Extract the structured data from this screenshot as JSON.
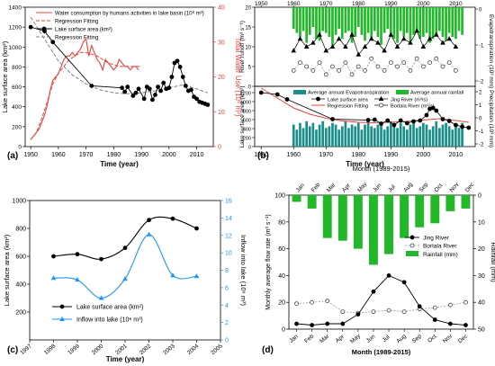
{
  "figure": {
    "background": "#ffffff"
  },
  "chart_data": [
    {
      "id": "a",
      "type": "line",
      "panel_label": "(a)",
      "xlabel": "Time (year)",
      "ylabel_left": "Lake surface area (km²)",
      "ylabel_right": "Total Water Use (10⁸ m³)",
      "xlim": [
        1948,
        2016
      ],
      "ylim_left": [
        0,
        1400
      ],
      "ylim_right": [
        0,
        40
      ],
      "xticks": [
        1950,
        1960,
        1970,
        1980,
        1990,
        2000,
        2010
      ],
      "yticks_left": [
        0,
        200,
        400,
        600,
        800,
        1000,
        1200,
        1400
      ],
      "yticks_right": [
        0,
        10,
        20,
        30,
        40
      ],
      "legend": [
        "Water consumption by humans activities in lake basin (10⁸ m³)",
        "Regression Fitting",
        "Lake surface area (km²)",
        "Regression Fitting"
      ],
      "colors": {
        "water": "#e8413c",
        "area": "#000000",
        "fit_area": "#808080",
        "right_axis": "#e8413c"
      },
      "series": [
        {
          "name": "Water consumption by humans activities in lake basin (10⁸ m³)",
          "axis": "right",
          "x": [
            1950,
            1951,
            1952,
            1953,
            1954,
            1955,
            1956,
            1957,
            1958,
            1959,
            1960,
            1961,
            1962,
            1963,
            1964,
            1965,
            1966,
            1967,
            1968,
            1969,
            1970,
            1971,
            1972,
            1973,
            1974,
            1975,
            1976,
            1977,
            1978,
            1979,
            1980,
            1981,
            1982,
            1983,
            1984,
            1985,
            1986,
            1987,
            1988,
            1989
          ],
          "y": [
            2,
            3,
            4,
            5,
            7,
            9,
            12,
            16,
            19,
            20,
            21,
            23,
            25,
            26,
            26,
            27,
            26,
            27,
            28,
            30,
            31,
            26,
            29,
            27,
            25,
            24,
            22,
            25,
            24,
            23,
            22,
            23,
            25,
            24,
            23,
            23,
            22,
            23,
            23,
            22
          ]
        },
        {
          "name": "Regression Fitting",
          "axis": "right",
          "x": [
            1950,
            1952,
            1954,
            1956,
            1958,
            1960,
            1962,
            1964,
            1966,
            1968,
            1970,
            1972,
            1974,
            1976,
            1978,
            1980,
            1982,
            1984,
            1986,
            1988,
            1990
          ],
          "y": [
            2,
            4,
            8,
            13,
            18,
            21,
            23,
            25,
            26,
            27,
            27,
            26.5,
            26,
            25,
            24,
            23.5,
            23,
            23,
            23,
            23,
            23
          ]
        },
        {
          "name": "Lake surface area (km²)",
          "axis": "left",
          "x": [
            1950,
            1955,
            1958,
            1972,
            1983,
            1984,
            1985,
            1987,
            1988,
            1989,
            1991,
            1992,
            1993,
            1994,
            1995,
            1996,
            1997,
            1998,
            1999,
            2000,
            2001,
            2002,
            2003,
            2004,
            2005,
            2006,
            2007,
            2008,
            2009,
            2010,
            2011,
            2012,
            2013,
            2014
          ],
          "y": [
            1200,
            1160,
            1050,
            610,
            590,
            550,
            600,
            510,
            540,
            580,
            480,
            600,
            580,
            470,
            520,
            600,
            560,
            640,
            580,
            590,
            700,
            840,
            860,
            800,
            700,
            610,
            560,
            570,
            500,
            480,
            450,
            440,
            430,
            420
          ]
        },
        {
          "name": "Regression Fitting",
          "axis": "left",
          "x": [
            1950,
            1955,
            1960,
            1965,
            1970,
            1975,
            1980,
            1985,
            1990,
            1995,
            2000,
            2005,
            2010,
            2014
          ],
          "y": [
            1300,
            1080,
            860,
            720,
            630,
            570,
            540,
            530,
            540,
            560,
            590,
            620,
            580,
            540
          ]
        }
      ]
    },
    {
      "id": "b",
      "type": "line",
      "panel_label": "(b)",
      "xlim": [
        1948,
        2016
      ],
      "xticks": [
        1950,
        1960,
        1970,
        1980,
        1990,
        2000,
        2010
      ],
      "xticks_top": [
        1950,
        1960,
        1970,
        1980,
        1990,
        2000,
        2010
      ],
      "xlabel": "Time (year)",
      "ylabel_runoff": "River runoff (m³ s⁻¹)",
      "ylabel_area": "Lake surface area (km²)",
      "ylabel_right": "Evapotranspiration (10³ mm) Precipitation (10³ mm)",
      "yticks_runoff": [
        0,
        5,
        10,
        15,
        20
      ],
      "yticks_area": [
        0,
        200,
        400,
        600,
        800,
        1000,
        1200
      ],
      "yticks_right_upper": [
        0,
        -1,
        -2
      ],
      "yticks_right_lower": [
        2,
        1,
        0,
        -1,
        -2
      ],
      "legend_upper": [
        "Average annual Evapotranspiration",
        "Average annual rainfall"
      ],
      "legend_lower": [
        "Lake surface area",
        "Jing River (m³/s)",
        "Regression Fitting",
        "Bortala River (m³/s)"
      ],
      "colors": {
        "rainfall": "#22b82a",
        "evap": "#1a8f8a",
        "fit": "#e8413c"
      },
      "rainfall_bars": {
        "x": [
          1960,
          1961,
          1962,
          1963,
          1964,
          1965,
          1966,
          1967,
          1968,
          1969,
          1970,
          1971,
          1972,
          1973,
          1974,
          1975,
          1976,
          1977,
          1978,
          1979,
          1980,
          1981,
          1982,
          1983,
          1984,
          1985,
          1986,
          1987,
          1988,
          1989,
          1990,
          1991,
          1992,
          1993,
          1994,
          1995,
          1996,
          1997,
          1998,
          1999,
          2000,
          2001,
          2002,
          2003,
          2004,
          2005,
          2006,
          2007,
          2008,
          2009,
          2010,
          2011,
          2012
        ],
        "values": [
          1.1,
          1.3,
          1.5,
          1.2,
          1.8,
          1.4,
          1.0,
          1.6,
          1.7,
          1.2,
          1.3,
          1.5,
          1.9,
          1.4,
          1.1,
          1.6,
          1.3,
          1.2,
          1.8,
          1.5,
          1.0,
          1.4,
          1.7,
          1.3,
          1.6,
          1.2,
          1.5,
          1.9,
          1.3,
          1.1,
          1.4,
          1.6,
          1.8,
          1.2,
          1.5,
          1.3,
          1.7,
          1.4,
          1.2,
          1.6,
          1.5,
          1.3,
          1.8,
          1.6,
          1.4,
          1.2,
          1.5,
          1.7,
          1.3,
          1.5,
          1.6,
          1.2,
          1.4
        ]
      },
      "evap_bars": {
        "x": [
          1960,
          1961,
          1962,
          1963,
          1964,
          1965,
          1966,
          1967,
          1968,
          1969,
          1970,
          1971,
          1972,
          1973,
          1974,
          1975,
          1976,
          1977,
          1978,
          1979,
          1980,
          1981,
          1982,
          1983,
          1984,
          1985,
          1986,
          1987,
          1988,
          1989,
          1990,
          1991,
          1992,
          1993,
          1994,
          1995,
          1996,
          1997,
          1998,
          1999,
          2000,
          2001,
          2002,
          2003,
          2004,
          2005,
          2006,
          2007,
          2008,
          2009,
          2010,
          2011,
          2012
        ],
        "values": [
          -1.3,
          -1.0,
          -1.4,
          -1.1,
          -1.5,
          -1.2,
          -1.4,
          -1.0,
          -1.3,
          -1.5,
          -1.1,
          -1.2,
          -1.4,
          -1.3,
          -1.0,
          -1.2,
          -1.5,
          -1.1,
          -1.3,
          -1.2,
          -1.4,
          -1.0,
          -1.3,
          -1.5,
          -1.2,
          -1.1,
          -1.3,
          -1.4,
          -1.0,
          -1.2,
          -1.5,
          -1.3,
          -1.1,
          -1.4,
          -1.2,
          -1.0,
          -1.3,
          -1.5,
          -1.1,
          -1.2,
          -1.4,
          -1.3,
          -1.0,
          -1.2,
          -1.5,
          -1.1,
          -1.3,
          -1.4,
          -1.2,
          -1.0,
          -1.3,
          -1.1,
          -1.4
        ]
      },
      "jing_river": {
        "x": [
          1960,
          1962,
          1964,
          1966,
          1968,
          1970,
          1972,
          1974,
          1976,
          1978,
          1980,
          1982,
          1984,
          1986,
          1988,
          1990,
          1992,
          1994,
          1996,
          1998,
          2000,
          2002,
          2004,
          2006,
          2008,
          2010
        ],
        "y": [
          9,
          12,
          10,
          11,
          13,
          9,
          10,
          12,
          10,
          13,
          8,
          10,
          12,
          11,
          9,
          13,
          10,
          12,
          11,
          14,
          10,
          12,
          13,
          11,
          12,
          10
        ]
      },
      "bortala_river": {
        "x": [
          1960,
          1962,
          1964,
          1966,
          1968,
          1970,
          1972,
          1974,
          1976,
          1978,
          1980,
          1982,
          1984,
          1986,
          1988,
          1990,
          1992,
          1994,
          1996,
          1998,
          2000,
          2002,
          2004,
          2006,
          2008,
          2010
        ],
        "y": [
          4,
          6,
          5,
          4,
          6,
          3,
          5,
          4,
          6,
          3,
          5,
          4,
          7,
          5,
          4,
          6,
          5,
          6,
          4,
          7,
          5,
          6,
          7,
          5,
          6,
          4
        ]
      },
      "lake_area": {
        "x": [
          1950,
          1955,
          1958,
          1972,
          1983,
          1985,
          1987,
          1989,
          1991,
          1993,
          1995,
          1997,
          1999,
          2001,
          2002,
          2003,
          2004,
          2006,
          2008,
          2010,
          2012,
          2014
        ],
        "y": [
          1200,
          1160,
          1050,
          610,
          590,
          600,
          510,
          580,
          480,
          580,
          520,
          560,
          580,
          700,
          840,
          860,
          800,
          610,
          570,
          480,
          440,
          420
        ]
      },
      "fit": {
        "x": [
          1950,
          1955,
          1960,
          1965,
          1970,
          1975,
          1980,
          1985,
          1990,
          1995,
          2000,
          2005,
          2010,
          2014
        ],
        "y": [
          1300,
          1080,
          860,
          720,
          630,
          570,
          540,
          530,
          540,
          560,
          590,
          620,
          580,
          540
        ]
      }
    },
    {
      "id": "c",
      "type": "line",
      "panel_label": "(c)",
      "xlabel": "Time (year)",
      "ylabel_left": "Lake surface area (km²)",
      "ylabel_right": "Inflow into lake (10⁸ m³)",
      "xlim": [
        1997,
        2005
      ],
      "ylim_left": [
        0,
        1000
      ],
      "ylim_right": [
        0,
        16
      ],
      "xticks": [
        1997,
        1998,
        1999,
        2000,
        2001,
        2002,
        2003,
        2004,
        2005
      ],
      "yticks_left": [
        200,
        400,
        600,
        800,
        1000
      ],
      "yticks_right": [
        0,
        2,
        4,
        6,
        8,
        10,
        12,
        14,
        16
      ],
      "legend": [
        "Lake surface area (km²)",
        "Inflow into lake (10⁸ m³)"
      ],
      "colors": {
        "area": "#000000",
        "inflow": "#2196f3",
        "right_axis": "#2196f3"
      },
      "series": [
        {
          "name": "Lake surface area (km²)",
          "axis": "left",
          "x": [
            1998,
            1999,
            2000,
            2001,
            2002,
            2003,
            2004
          ],
          "y": [
            600,
            615,
            580,
            660,
            860,
            870,
            800
          ]
        },
        {
          "name": "Inflow into lake (10⁸ m³)",
          "axis": "right",
          "x": [
            1998,
            1999,
            2000,
            2001,
            2002,
            2003,
            2004
          ],
          "y": [
            7.1,
            6.9,
            4.8,
            7.0,
            12.1,
            7.4,
            7.3
          ]
        }
      ]
    },
    {
      "id": "d",
      "type": "bar",
      "panel_label": "(d)",
      "title": "Month (1989-2015)",
      "xlabel": "Month (1989-2015)",
      "ylabel_left": "Monthly average flow rate (m³ s⁻¹)",
      "ylabel_right": "Rainfall (mm)",
      "categories": [
        "Jan",
        "Feb",
        "Mar",
        "Apr",
        "May",
        "Jun",
        "Jul",
        "Aug",
        "Sep",
        "Oct",
        "Nov",
        "Dec"
      ],
      "ylim_left": [
        0,
        100
      ],
      "ylim_right": [
        50,
        0
      ],
      "yticks_left": [
        0,
        20,
        40,
        60,
        80,
        100
      ],
      "yticks_right": [
        0,
        10,
        20,
        30,
        40,
        50
      ],
      "legend": [
        "Jing River",
        "Bortala River",
        "Rainfall (mm)"
      ],
      "colors": {
        "rainfall": "#22b82a",
        "jing": "#000000",
        "bortala": "#808080"
      },
      "series": [
        {
          "name": "Rainfall (mm)",
          "axis": "right",
          "values": [
            2.5,
            5,
            16,
            17,
            20,
            26,
            22,
            16,
            12,
            10.5,
            6,
            5
          ]
        },
        {
          "name": "Jing River",
          "axis": "left",
          "values": [
            4,
            3,
            4,
            4,
            11,
            28,
            40,
            35,
            17,
            7,
            4,
            3
          ]
        },
        {
          "name": "Bortala River",
          "axis": "left",
          "values": [
            19,
            20,
            21,
            13,
            12,
            13,
            14,
            13,
            15,
            16,
            18,
            20
          ]
        }
      ]
    }
  ]
}
